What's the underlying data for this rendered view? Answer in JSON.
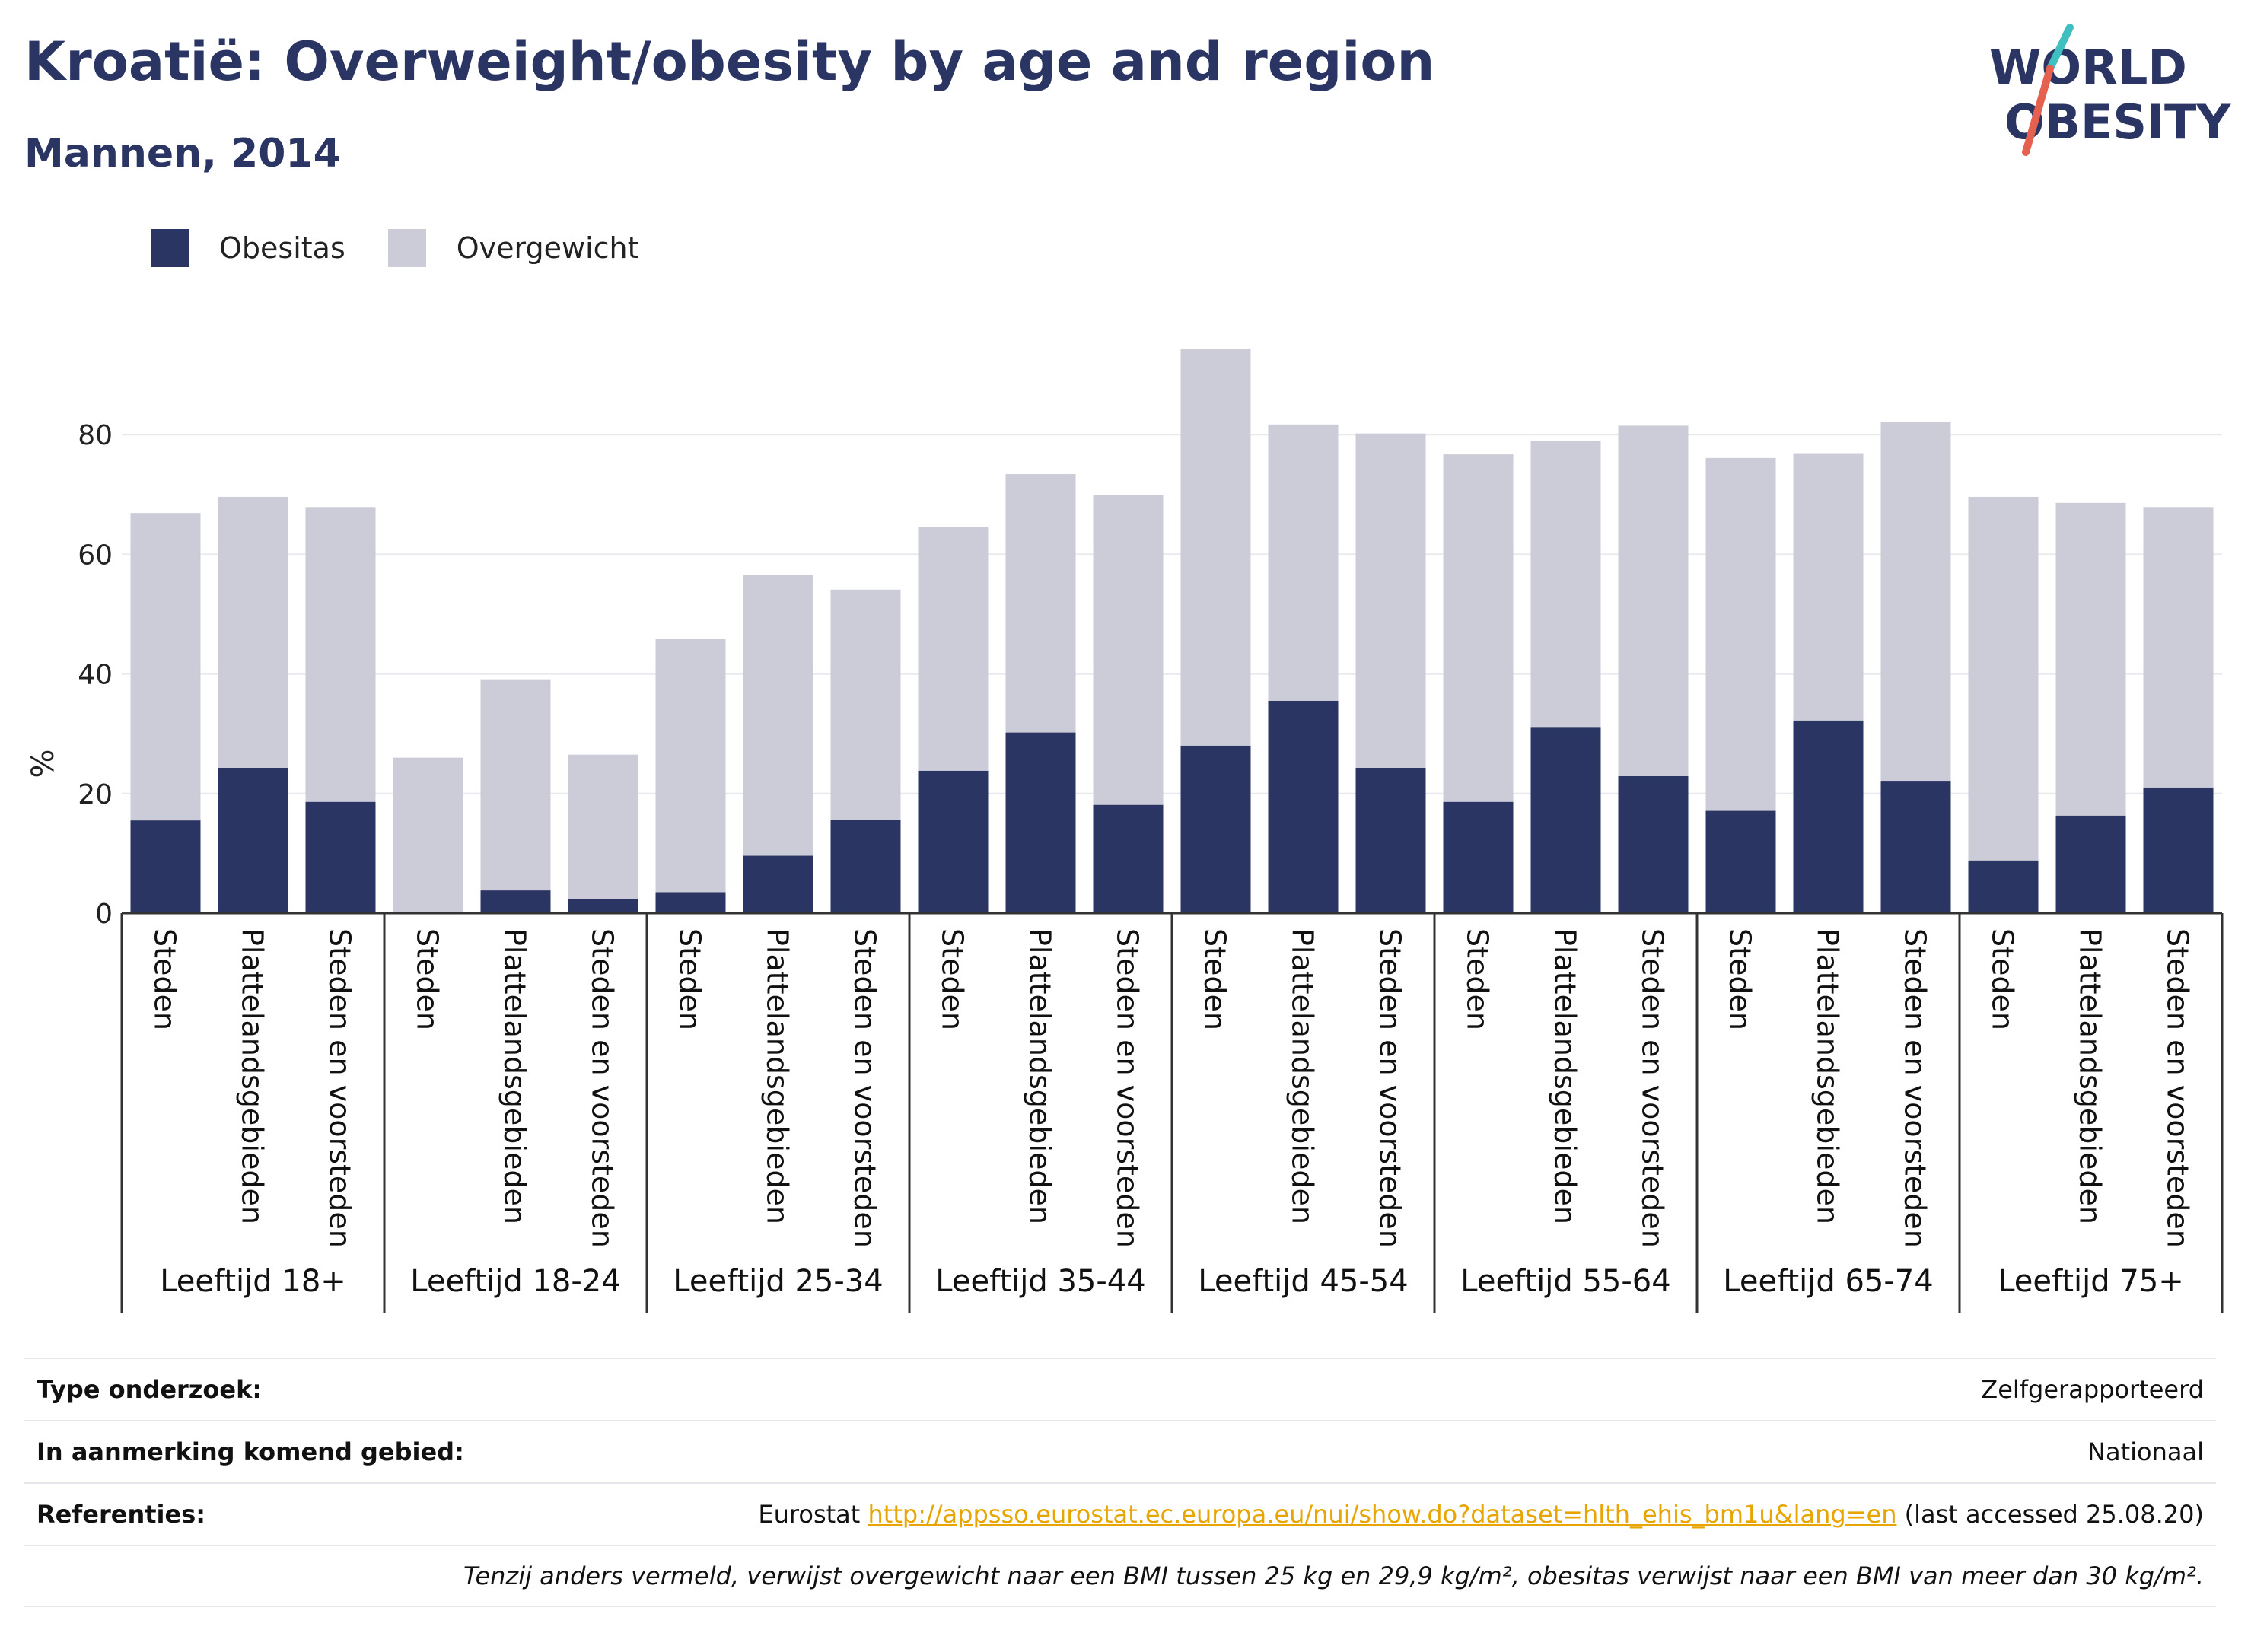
{
  "header": {
    "title": "Kroatië: Overweight/obesity by age and region",
    "subtitle": "Mannen, 2014"
  },
  "logo": {
    "line1": "WORLD",
    "line2": "OBESITY"
  },
  "colors": {
    "obesity": "#2a3563",
    "overweight": "#cbccd7",
    "accent_teal": "#3fbfbf",
    "accent_red": "#e5604f",
    "link": "#e8a500"
  },
  "chart_data": {
    "type": "bar",
    "stacked": true,
    "ylabel": "%",
    "ylim": [
      0,
      95
    ],
    "yticks": [
      0,
      20,
      40,
      60,
      80
    ],
    "grid": true,
    "legend_position": "top-left",
    "groups": [
      {
        "label": "Leeftijd 18+",
        "categories": [
          "Steden",
          "Plattelandsgebieden",
          "Steden en voorsteden"
        ],
        "obesitas": [
          15.5,
          24.3,
          18.6
        ],
        "total": [
          66.9,
          69.6,
          67.9
        ]
      },
      {
        "label": "Leeftijd 18-24",
        "categories": [
          "Steden",
          "Plattelandsgebieden",
          "Steden en voorsteden"
        ],
        "obesitas": [
          0,
          3.8,
          2.3
        ],
        "total": [
          26.0,
          39.1,
          26.5
        ]
      },
      {
        "label": "Leeftijd 25-34",
        "categories": [
          "Steden",
          "Plattelandsgebieden",
          "Steden en voorsteden"
        ],
        "obesitas": [
          3.5,
          9.6,
          15.6
        ],
        "total": [
          45.8,
          56.5,
          54.1
        ]
      },
      {
        "label": "Leeftijd 35-44",
        "categories": [
          "Steden",
          "Plattelandsgebieden",
          "Steden en voorsteden"
        ],
        "obesitas": [
          23.8,
          30.2,
          18.1
        ],
        "total": [
          64.6,
          73.4,
          69.9
        ]
      },
      {
        "label": "Leeftijd 45-54",
        "categories": [
          "Steden",
          "Plattelandsgebieden",
          "Steden en voorsteden"
        ],
        "obesitas": [
          28.0,
          35.5,
          24.3
        ],
        "total": [
          94.3,
          81.7,
          80.2
        ]
      },
      {
        "label": "Leeftijd 55-64",
        "categories": [
          "Steden",
          "Plattelandsgebieden",
          "Steden en voorsteden"
        ],
        "obesitas": [
          18.6,
          31.0,
          22.9
        ],
        "total": [
          76.7,
          79.0,
          81.5
        ]
      },
      {
        "label": "Leeftijd 65-74",
        "categories": [
          "Steden",
          "Plattelandsgebieden",
          "Steden en voorsteden"
        ],
        "obesitas": [
          17.1,
          32.2,
          22.0
        ],
        "total": [
          76.1,
          76.9,
          82.1
        ]
      },
      {
        "label": "Leeftijd 75+",
        "categories": [
          "Steden",
          "Plattelandsgebieden",
          "Steden en voorsteden"
        ],
        "obesitas": [
          8.8,
          16.3,
          21.0
        ],
        "total": [
          69.6,
          68.6,
          67.9
        ]
      }
    ],
    "series": [
      {
        "name": "Obesitas",
        "key": "obesitas"
      },
      {
        "name": "Overgewicht",
        "key": "overgewicht"
      }
    ]
  },
  "info": {
    "type_label": "Type onderzoek:",
    "type_value": "Zelfgerapporteerd",
    "area_label": "In aanmerking komend gebied:",
    "area_value": "Nationaal",
    "ref_label": "Referenties:",
    "ref_prefix": "Eurostat",
    "ref_link": "http://appsso.eurostat.ec.europa.eu/nui/show.do?dataset=hlth_ehis_bm1u&lang=en",
    "ref_suffix": "(last accessed 25.08.20)",
    "note": "Tenzij anders vermeld, verwijst overgewicht naar een BMI tussen 25 kg en 29,9 kg/m², obesitas verwijst naar een BMI van meer dan 30 kg/m²."
  }
}
